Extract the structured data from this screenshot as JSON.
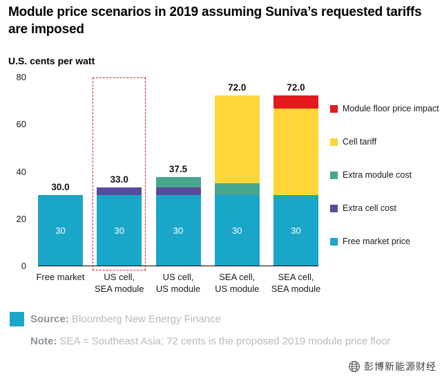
{
  "chart_data": {
    "type": "bar",
    "stacked": true,
    "title": "Module price scenarios in 2019 assuming Suniva’s requested tariffs are imposed",
    "ylabel": "U.S. cents per watt",
    "xlabel": "",
    "ylim": [
      0,
      80
    ],
    "yticks": [
      0,
      20,
      40,
      60,
      80
    ],
    "grid": false,
    "legend_position": "right",
    "categories": [
      "Free market",
      "US cell,\nSEA module",
      "US cell,\nUS module",
      "SEA cell,\nUS module",
      "SEA cell,\nSEA module"
    ],
    "series": [
      {
        "name": "Free market price",
        "color": "#1aa6c8",
        "values": [
          30,
          30,
          30,
          30,
          30
        ]
      },
      {
        "name": "Extra cell cost",
        "color": "#5a4a9b",
        "values": [
          0,
          3,
          3,
          0,
          0
        ]
      },
      {
        "name": "Extra module cost",
        "color": "#47a78e",
        "values": [
          0,
          0,
          4.5,
          5,
          0
        ]
      },
      {
        "name": "Cell tariff",
        "color": "#ffd638",
        "values": [
          0,
          0,
          0,
          37,
          36.5
        ]
      },
      {
        "name": "Module floor price impact",
        "color": "#e3191e",
        "values": [
          0,
          0,
          0,
          0,
          5.5
        ]
      }
    ],
    "bar_total_labels": [
      "30.0",
      "33.0",
      "37.5",
      "72.0",
      "72.0"
    ],
    "bar_inside_labels": [
      "30",
      "30",
      "30",
      "30",
      "30"
    ],
    "highlight": {
      "category_index": 1,
      "style": "red-dashed-box",
      "color": "#e3191e"
    }
  },
  "footer": {
    "source_label": "Source:",
    "source_text": "Bloomberg New Energy Finance",
    "note_label": "Note:",
    "note_text": "SEA = Southeast Asia; 72 cents is the proposed 2019 module price floor",
    "accent_color": "#1aa6c8"
  },
  "watermark": {
    "text": "彭博新能源财经"
  }
}
